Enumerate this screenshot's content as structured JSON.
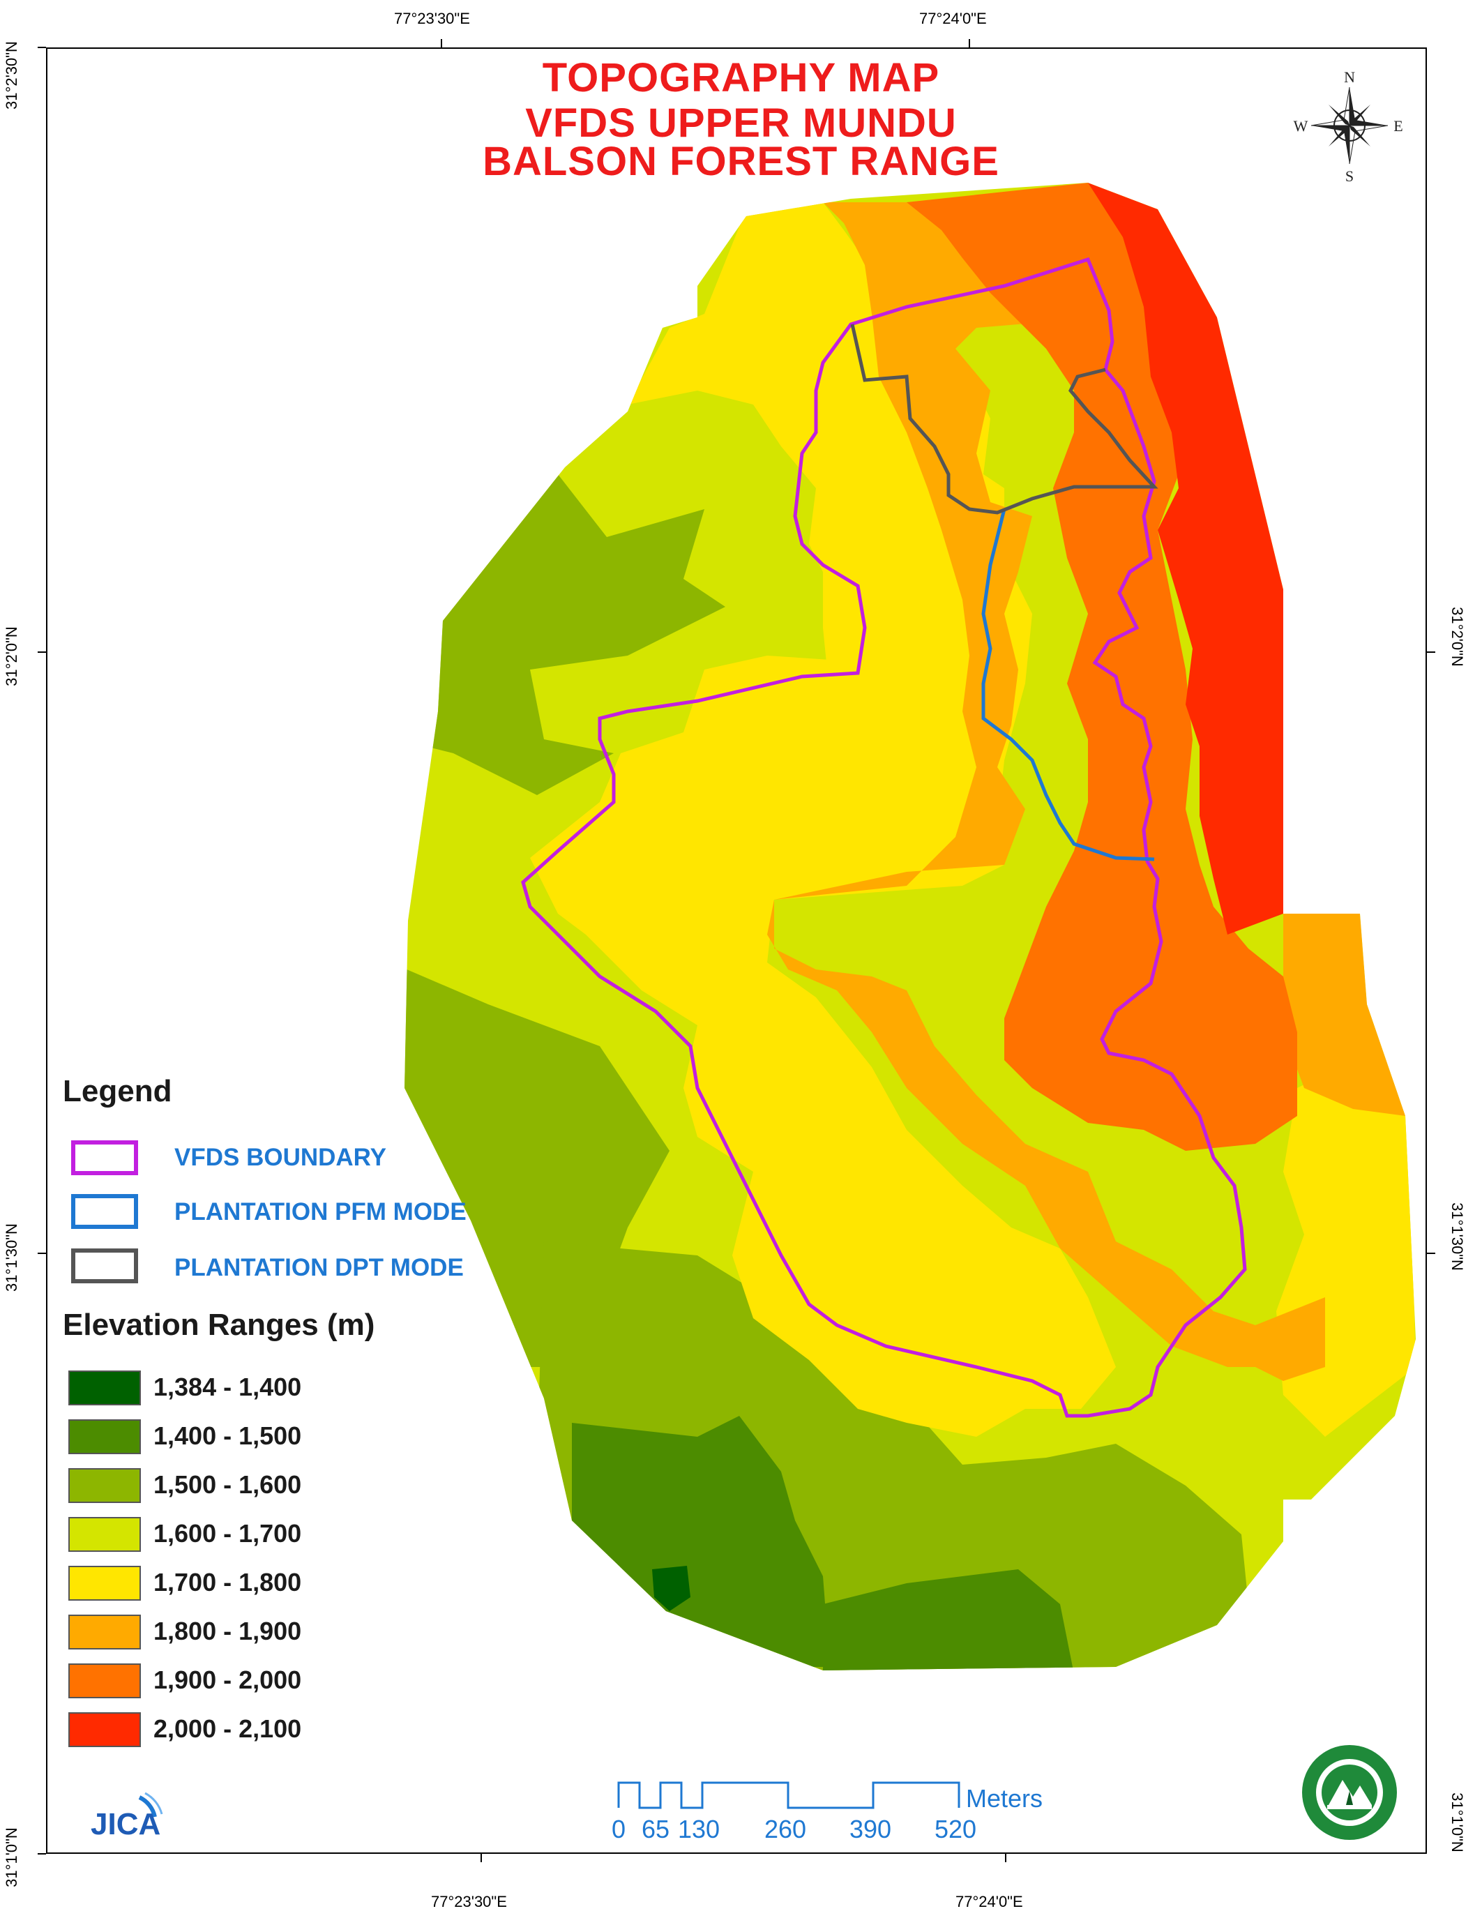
{
  "title_lines": [
    "TOPOGRAPHY MAP",
    "VFDS UPPER MUNDU",
    "BALSON FOREST RANGE"
  ],
  "coordinates": {
    "top": [
      "77°23'30\"E",
      "77°24'0\"E"
    ],
    "bottom": [
      "77°23'30\"E",
      "77°24'0\"E"
    ],
    "left": [
      "31°2'30\"N",
      "31°2'0\"N",
      "31°1'30\"N",
      "31°1'0\"N"
    ],
    "right": [
      "31°2'0\"N",
      "31°1'30\"N",
      "31°1'0\"N"
    ]
  },
  "compass": {
    "n": "N",
    "s": "S",
    "e": "E",
    "w": "W",
    "icon": "compass-rose-icon"
  },
  "legend": {
    "title": "Legend",
    "lines": [
      {
        "label": "VFDS BOUNDARY",
        "color": "#c21fe0"
      },
      {
        "label": "PLANTATION PFM MODE",
        "color": "#1e78d2"
      },
      {
        "label": "PLANTATION DPT MODE",
        "color": "#555555"
      }
    ],
    "elevation_title": "Elevation Ranges (m)",
    "elevation_classes": [
      {
        "label": "1,384 - 1,400",
        "color": "#006100"
      },
      {
        "label": "1,400 - 1,500",
        "color": "#4c8c00"
      },
      {
        "label": "1,500 - 1,600",
        "color": "#8db600"
      },
      {
        "label": "1,600 - 1,700",
        "color": "#d4e500"
      },
      {
        "label": "1,700 - 1,800",
        "color": "#ffe600"
      },
      {
        "label": "1,800 - 1,900",
        "color": "#ffaa00"
      },
      {
        "label": "1,900 - 2,000",
        "color": "#ff7200"
      },
      {
        "label": "2,000 - 2,100",
        "color": "#ff2a00"
      }
    ]
  },
  "scale_bar": {
    "ticks": [
      "0",
      "65",
      "130",
      "260",
      "390",
      "520"
    ],
    "unit": "Meters"
  },
  "logos": {
    "left": "JICA",
    "left_icon": "jica-logo-icon",
    "right_icon": "forest-department-emblem-icon"
  }
}
